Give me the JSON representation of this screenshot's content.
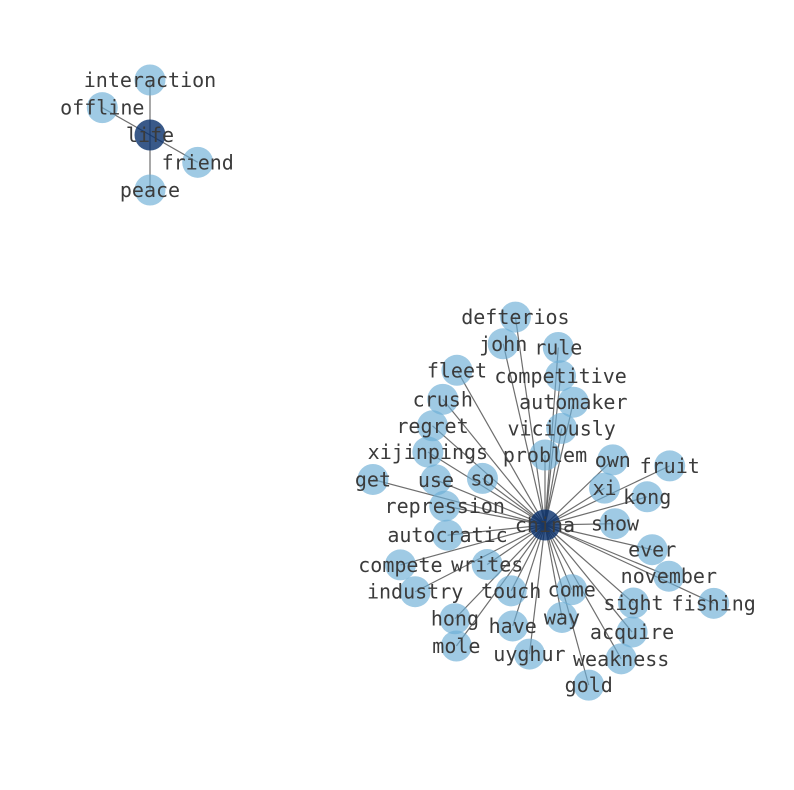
{
  "graph": {
    "node_color": "#6baed6",
    "hub_color": "#08306b",
    "components": [
      {
        "hub": "life",
        "neighbors": [
          "interaction",
          "friend",
          "peace",
          "offline"
        ]
      },
      {
        "hub": "china",
        "neighbors": [
          "problem",
          "own",
          "viciously",
          "xi",
          "kong",
          "automaker",
          "show",
          "ever",
          "november",
          "fruit",
          "sight",
          "acquire",
          "weakness",
          "come",
          "gold",
          "way",
          "fishing",
          "have",
          "touch",
          "uyghur",
          "hong",
          "writes",
          "industry",
          "compete",
          "autocratic",
          "mole",
          "repression",
          "use",
          "xijinpings",
          "regret",
          "crush",
          "fleet",
          "get",
          "john",
          "defterios",
          "competitive",
          "so",
          "rule"
        ]
      }
    ]
  }
}
